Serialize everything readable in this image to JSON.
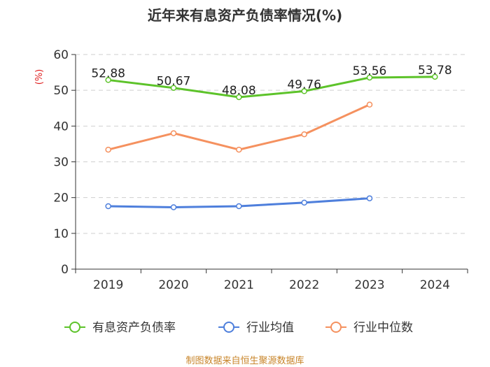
{
  "chart_data": {
    "type": "line",
    "title": "近年来有息资产负债率情况(%)",
    "ylabel": "(%)",
    "categories": [
      "2019",
      "2020",
      "2021",
      "2022",
      "2023",
      "2024"
    ],
    "ylim": [
      0,
      60
    ],
    "yticks": [
      "0",
      "10",
      "20",
      "30",
      "40",
      "50",
      "60"
    ],
    "grid": true,
    "legend_position": "bottom",
    "series": [
      {
        "name": "有息资产负债率",
        "color": "#5dc32a",
        "values": [
          52.88,
          50.67,
          48.08,
          49.76,
          53.56,
          53.78
        ],
        "labels": [
          "52.88",
          "50.67",
          "48.08",
          "49.76",
          "53.56",
          "53.78"
        ]
      },
      {
        "name": "行业均值",
        "color": "#4e7fdc",
        "values": [
          17.6,
          17.3,
          17.6,
          18.6,
          19.8,
          null
        ]
      },
      {
        "name": "行业中位数",
        "color": "#f5915f",
        "values": [
          33.4,
          38.0,
          33.4,
          37.7,
          46.0,
          null
        ]
      }
    ],
    "source": "制图数据来自恒生聚源数据库",
    "ylabel_color": "#e02020",
    "source_color": "#c8852a"
  }
}
